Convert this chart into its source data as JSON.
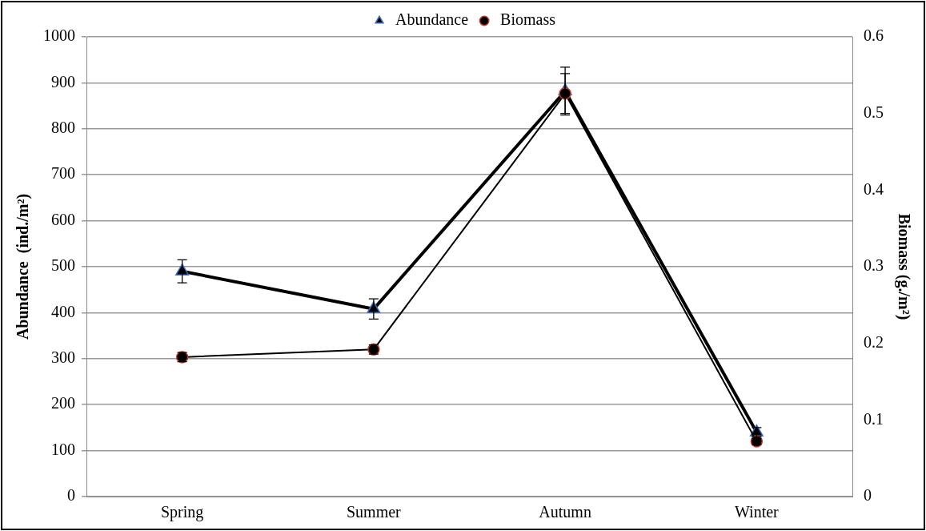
{
  "chart_data": {
    "type": "line",
    "categories": [
      "Spring",
      "Summer",
      "Autumn",
      "Winter"
    ],
    "ylabel": "Abundance  (ind./m²)",
    "y2label": "Biomass (g./m²)",
    "ylim": [
      0,
      1000
    ],
    "yticks": [
      0,
      100,
      200,
      300,
      400,
      500,
      600,
      700,
      800,
      900,
      1000
    ],
    "y2lim": [
      0,
      0.6
    ],
    "y2ticks": [
      0,
      0.1,
      0.2,
      0.3,
      0.4,
      0.5,
      0.6
    ],
    "series": [
      {
        "name": "Abundance",
        "color": "#000000",
        "values": [
          490,
          408,
          882,
          140
        ],
        "errors": [
          25,
          22,
          52,
          10
        ],
        "marker": "triangle"
      },
      {
        "name": "Biomass",
        "color": "#000000",
        "values": [
          0.182,
          0.192,
          0.526,
          0.072
        ],
        "errors": [
          0.006,
          0.006,
          0.026,
          0.004
        ],
        "marker": "circle",
        "axis": "y2"
      }
    ],
    "grid": "y",
    "legend": "top"
  }
}
